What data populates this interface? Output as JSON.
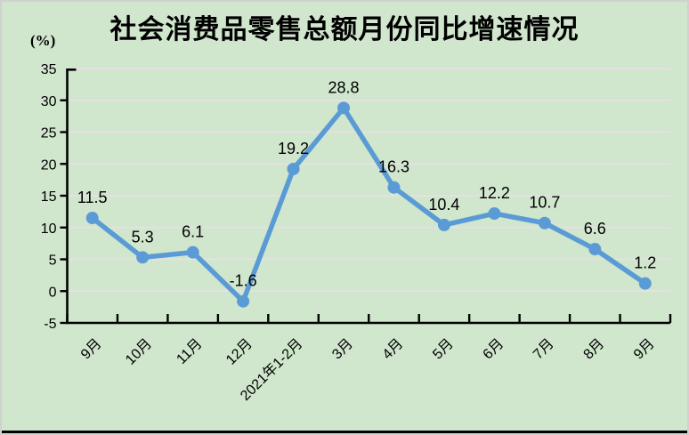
{
  "chart_data": {
    "type": "line",
    "title": "社会消费品零售总额月份同比增速情况",
    "y_unit_label": "(%)",
    "categories": [
      "9月",
      "10月",
      "11月",
      "12月",
      "2021年1-2月",
      "3月",
      "4月",
      "5月",
      "6月",
      "7月",
      "8月",
      "9月"
    ],
    "values": [
      11.5,
      5.3,
      6.1,
      -1.6,
      19.2,
      28.8,
      16.3,
      10.4,
      12.2,
      10.7,
      6.6,
      1.2
    ],
    "value_labels": [
      "11.5",
      "5.3",
      "6.1",
      "-1.6",
      "19.2",
      "28.8",
      "16.3",
      "10.4",
      "12.2",
      "10.7",
      "6.6",
      "1.2"
    ],
    "series_name": "社会消费品零售总额月份同比增速",
    "ylim": [
      -5,
      35
    ],
    "yticks": [
      -5,
      0,
      5,
      10,
      15,
      20,
      25,
      30,
      35
    ],
    "grid": true,
    "legend": "none",
    "colors": {
      "line": "#5b9bd5",
      "marker": "#5b9bd5",
      "gridline": "#e8e0e6",
      "axis": "#000000",
      "background": "#d0e6cd",
      "text": "#000000"
    }
  }
}
